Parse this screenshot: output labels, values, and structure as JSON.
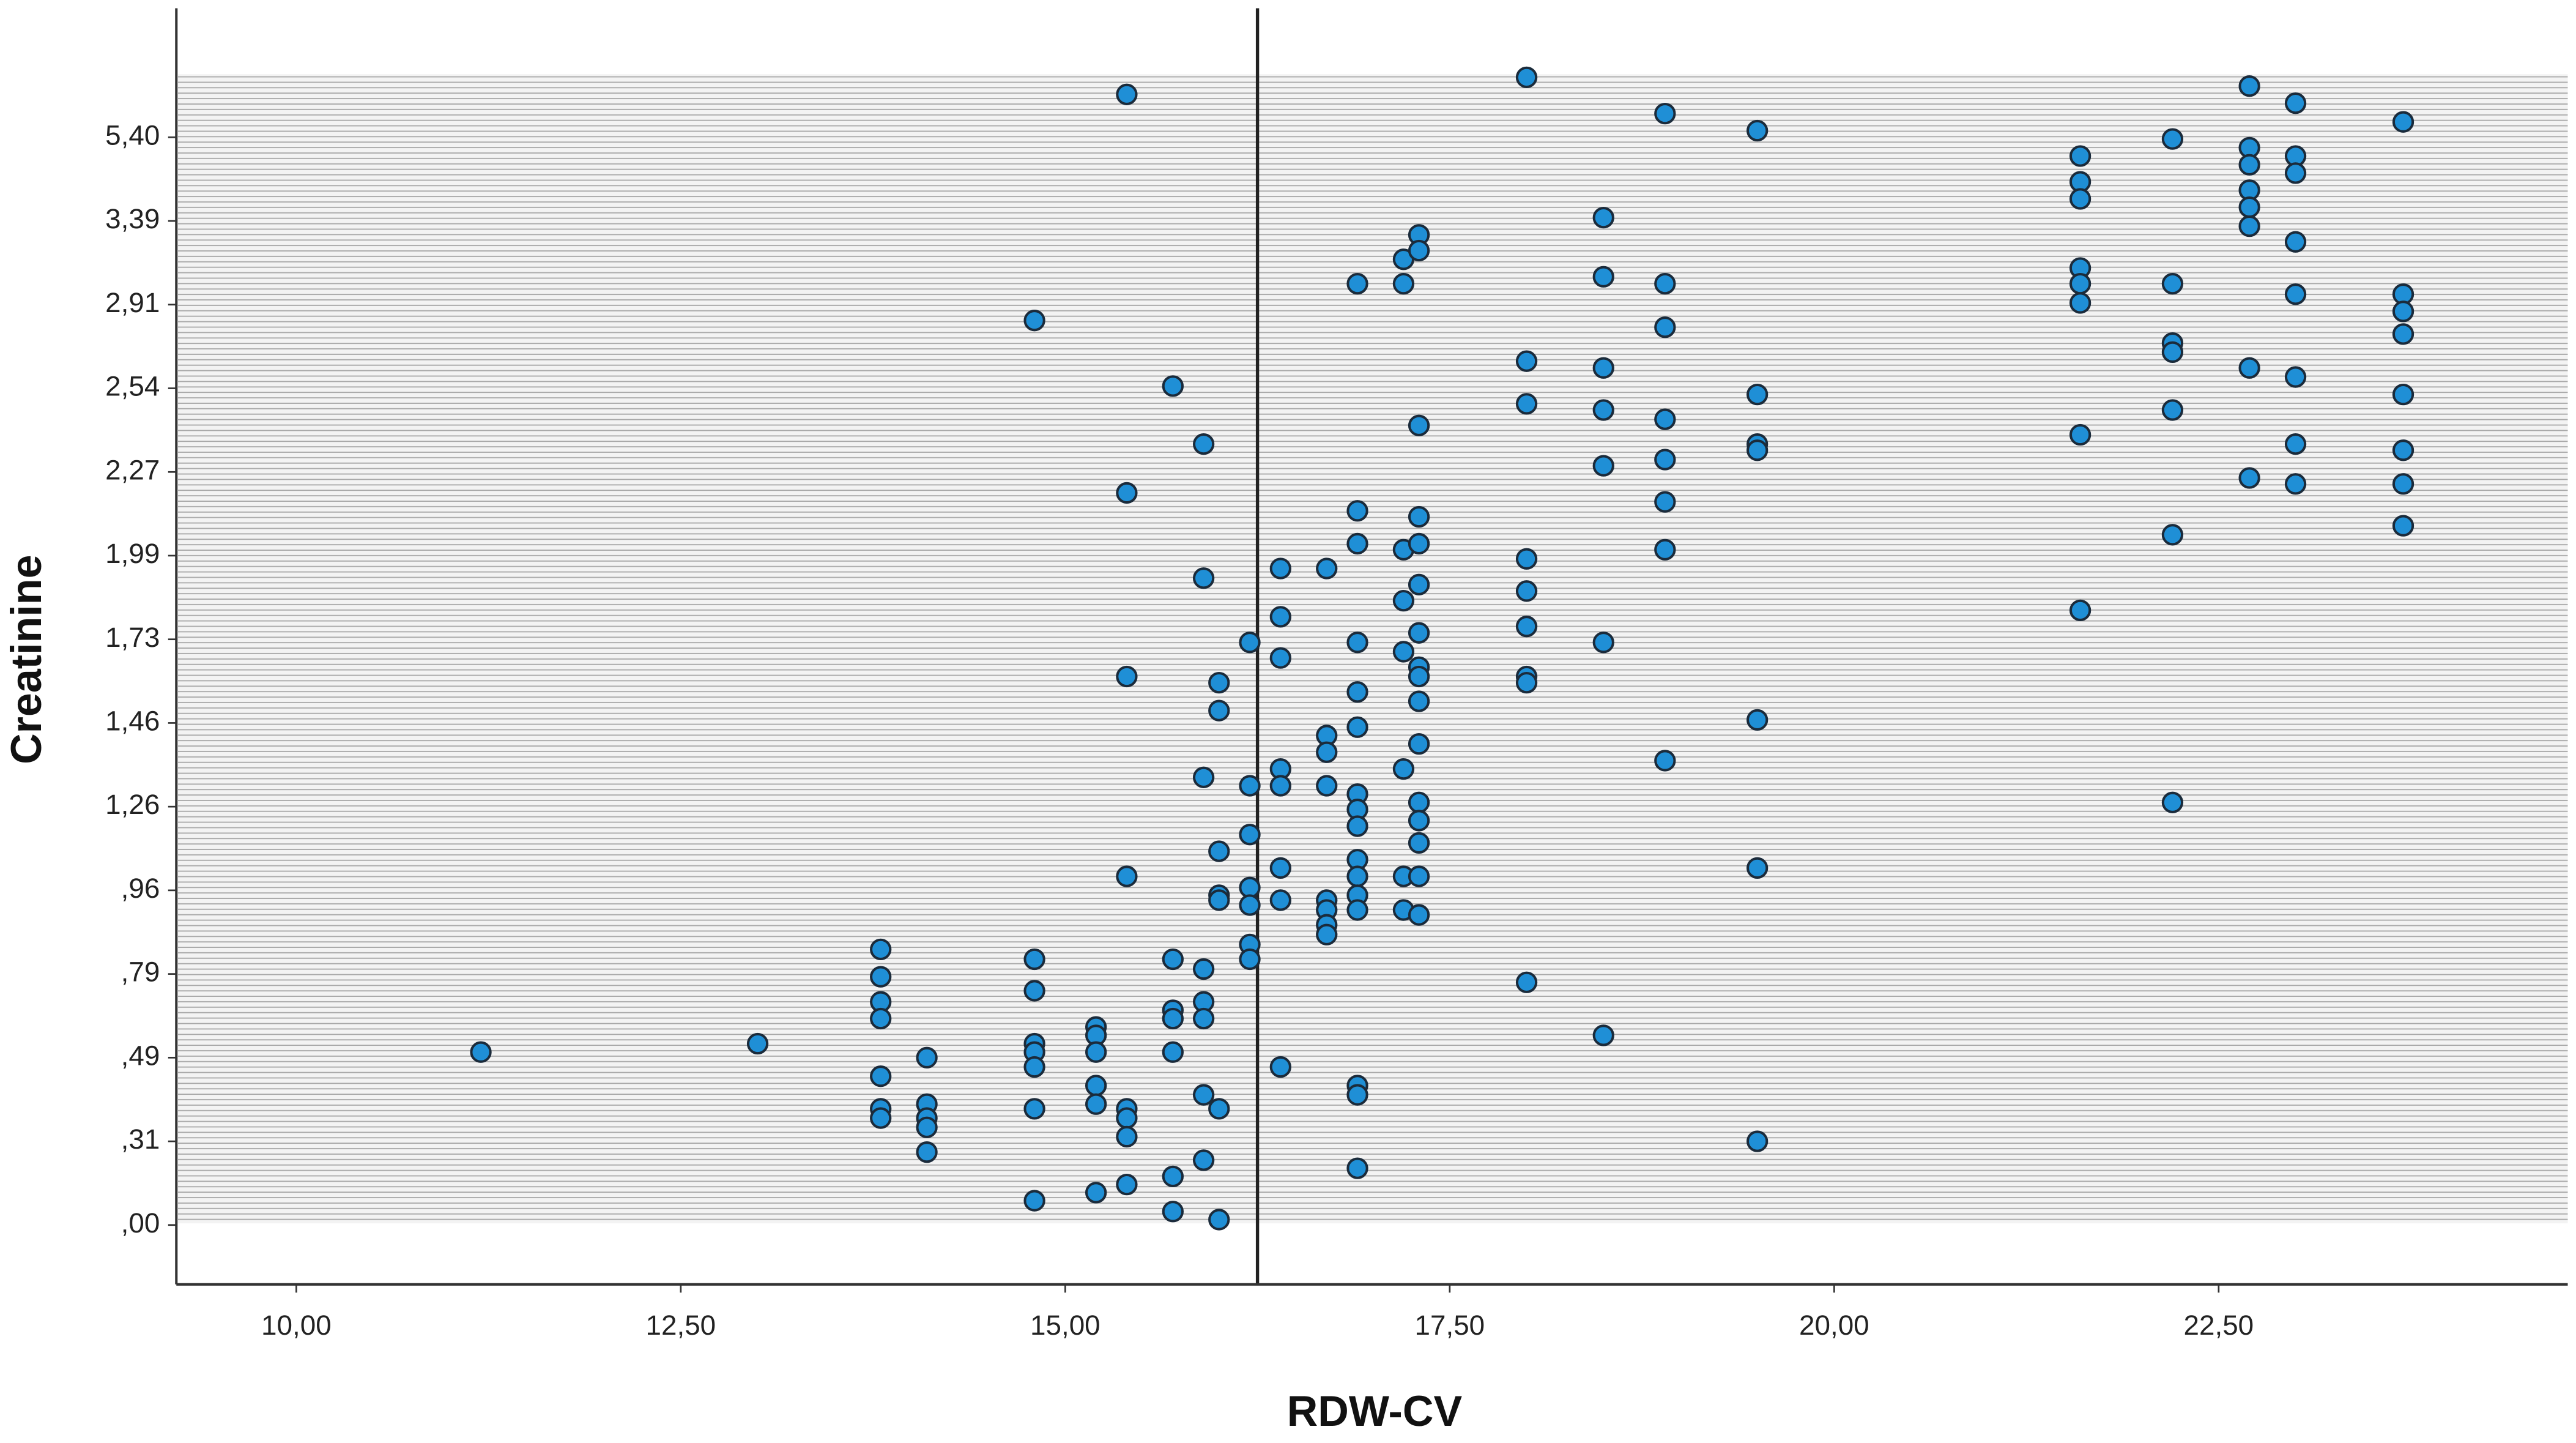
{
  "chart_data": {
    "type": "scatter",
    "x_label": "RDW-CV",
    "y_label": "Creatinine",
    "color": "#1f8fd6",
    "edge_color": "#1b2b3b",
    "xlim": [
      9.22,
      24.77
    ],
    "xticks": [
      {
        "value": 10,
        "label": "10,00"
      },
      {
        "value": 12.5,
        "label": "12,50"
      },
      {
        "value": 15,
        "label": "15,00"
      },
      {
        "value": 17.5,
        "label": "17,50"
      },
      {
        "value": 20,
        "label": "20,00"
      },
      {
        "value": 22.5,
        "label": "22,50"
      }
    ],
    "ylim": [
      -0.22,
      8.5
    ],
    "yticks": [
      {
        "value": 0,
        "label": ",00"
      },
      {
        "value": 0.31,
        "label": ",31"
      },
      {
        "value": 0.49,
        "label": ",49"
      },
      {
        "value": 0.79,
        "label": ",79"
      },
      {
        "value": 0.96,
        "label": ",96"
      },
      {
        "value": 1.26,
        "label": "1,26"
      },
      {
        "value": 1.46,
        "label": "1,46"
      },
      {
        "value": 1.73,
        "label": "1,73"
      },
      {
        "value": 1.99,
        "label": "1,99"
      },
      {
        "value": 2.27,
        "label": "2,27"
      },
      {
        "value": 2.54,
        "label": "2,54"
      },
      {
        "value": 2.91,
        "label": "2,91"
      },
      {
        "value": 3.39,
        "label": "3,39"
      },
      {
        "value": 5.4,
        "label": "5,40"
      }
    ],
    "reference_line_x": 16.25,
    "x": [
      11.2,
      13.0,
      13.8,
      13.8,
      13.8,
      13.8,
      13.8,
      13.8,
      13.8,
      14.1,
      14.1,
      14.1,
      14.1,
      14.1,
      14.8,
      14.8,
      14.8,
      14.8,
      14.8,
      14.8,
      14.8,
      14.8,
      15.2,
      15.2,
      15.2,
      15.2,
      15.2,
      15.2,
      15.4,
      15.4,
      15.4,
      15.4,
      15.4,
      15.4,
      15.4,
      15.4,
      15.7,
      15.7,
      15.7,
      15.7,
      15.7,
      15.7,
      15.7,
      15.9,
      15.9,
      15.9,
      15.9,
      15.9,
      15.9,
      15.9,
      15.9,
      16.0,
      16.0,
      16.0,
      16.0,
      16.0,
      16.0,
      16.0,
      16.2,
      16.2,
      16.2,
      16.2,
      16.2,
      16.2,
      16.2,
      16.4,
      16.4,
      16.4,
      16.4,
      16.4,
      16.4,
      16.4,
      16.4,
      16.7,
      16.7,
      16.7,
      16.7,
      16.7,
      16.7,
      16.7,
      16.7,
      16.9,
      16.9,
      16.9,
      16.9,
      16.9,
      16.9,
      16.9,
      16.9,
      16.9,
      16.9,
      16.9,
      16.9,
      16.9,
      16.9,
      16.9,
      16.9,
      17.2,
      17.2,
      17.2,
      17.2,
      17.2,
      17.2,
      17.2,
      17.2,
      17.3,
      17.3,
      17.3,
      17.3,
      17.3,
      17.3,
      17.3,
      17.3,
      17.3,
      17.3,
      17.3,
      17.3,
      17.3,
      17.3,
      17.3,
      17.3,
      18.0,
      18.0,
      18.0,
      18.0,
      18.0,
      18.0,
      18.0,
      18.0,
      18.0,
      18.5,
      18.5,
      18.5,
      18.5,
      18.5,
      18.5,
      18.5,
      18.9,
      18.9,
      18.9,
      18.9,
      18.9,
      18.9,
      18.9,
      18.9,
      19.5,
      19.5,
      19.5,
      19.5,
      19.5,
      19.5,
      19.5,
      21.6,
      21.6,
      21.6,
      21.6,
      21.6,
      21.6,
      21.6,
      21.6,
      22.2,
      22.2,
      22.2,
      22.2,
      22.2,
      22.2,
      22.2,
      22.7,
      22.7,
      22.7,
      22.7,
      22.7,
      22.7,
      22.7,
      22.7,
      23.0,
      23.0,
      23.0,
      23.0,
      23.0,
      23.0,
      23.0,
      23.0,
      23.7,
      23.7,
      23.7,
      23.7,
      23.7,
      23.7,
      23.7,
      23.7
    ],
    "values": [
      0.51,
      0.54,
      0.84,
      0.78,
      0.69,
      0.63,
      0.45,
      0.38,
      0.36,
      0.49,
      0.39,
      0.36,
      0.34,
      0.27,
      2.84,
      0.82,
      0.73,
      0.54,
      0.51,
      0.47,
      0.38,
      0.09,
      0.6,
      0.57,
      0.51,
      0.43,
      0.39,
      0.12,
      6.43,
      2.2,
      1.61,
      1.01,
      0.38,
      0.36,
      0.32,
      0.15,
      2.55,
      0.82,
      0.66,
      0.63,
      0.51,
      0.18,
      0.05,
      2.36,
      1.92,
      1.33,
      0.8,
      0.69,
      0.63,
      0.41,
      0.24,
      1.59,
      1.5,
      1.1,
      0.95,
      0.94,
      0.38,
      0.02,
      1.72,
      1.31,
      1.16,
      0.97,
      0.93,
      0.85,
      0.82,
      1.95,
      1.8,
      1.67,
      1.35,
      1.31,
      1.04,
      0.94,
      0.47,
      1.95,
      1.43,
      1.39,
      1.31,
      0.94,
      0.92,
      0.89,
      0.87,
      3.03,
      2.14,
      2.03,
      1.72,
      1.56,
      1.45,
      1.29,
      1.25,
      1.19,
      1.07,
      1.01,
      0.95,
      0.92,
      0.43,
      0.41,
      0.21,
      3.17,
      3.03,
      2.01,
      1.85,
      1.69,
      1.35,
      1.01,
      0.92,
      3.31,
      3.22,
      2.42,
      2.12,
      2.03,
      1.9,
      1.75,
      1.64,
      1.61,
      1.53,
      1.41,
      1.27,
      1.21,
      1.13,
      1.01,
      0.91,
      6.84,
      2.66,
      2.49,
      1.98,
      1.88,
      1.77,
      1.61,
      1.59,
      0.76,
      3.47,
      3.07,
      2.63,
      2.47,
      2.29,
      1.72,
      0.57,
      5.97,
      3.03,
      2.81,
      2.44,
      2.31,
      2.17,
      2.01,
      1.37,
      5.56,
      2.52,
      2.36,
      2.34,
      1.47,
      1.04,
      0.31,
      4.95,
      4.33,
      3.92,
      3.12,
      3.03,
      2.92,
      2.39,
      1.82,
      5.36,
      3.03,
      2.74,
      2.7,
      2.47,
      2.06,
      1.27,
      6.63,
      5.15,
      4.74,
      4.13,
      3.72,
      3.36,
      2.63,
      2.25,
      6.22,
      4.95,
      4.54,
      3.27,
      2.97,
      2.59,
      2.36,
      2.23,
      5.77,
      2.97,
      2.88,
      2.78,
      2.52,
      2.34,
      2.23,
      2.09
    ]
  }
}
